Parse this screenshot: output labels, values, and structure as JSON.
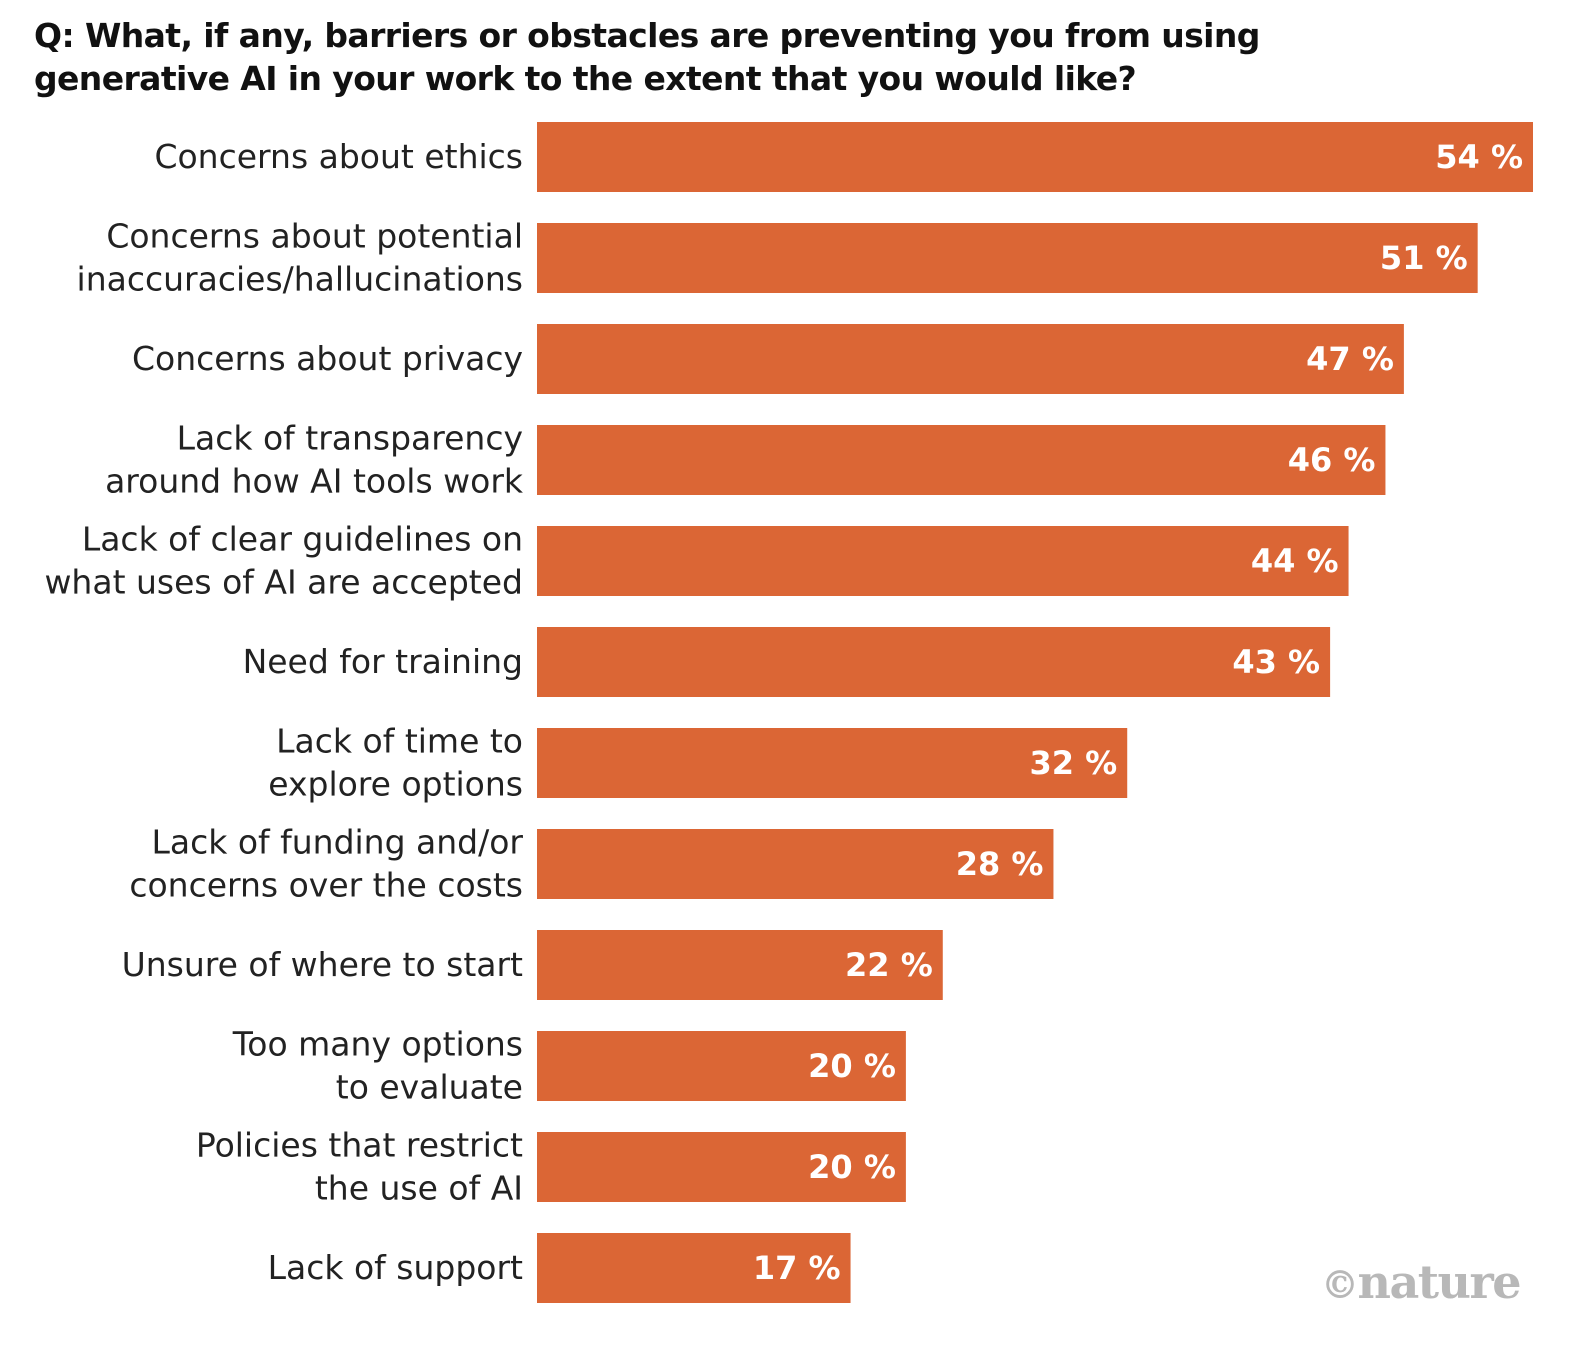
{
  "chart_data": {
    "type": "bar",
    "orientation": "horizontal",
    "title": "Q: What, if any, barriers or obstacles are preventing you from using generative AI in your work to the extent that you would like?",
    "categories": [
      [
        "Concerns about ethics"
      ],
      [
        "Concerns about potential",
        "inaccuracies/hallucinations"
      ],
      [
        "Concerns about privacy"
      ],
      [
        "Lack of transparency",
        "around how AI tools work"
      ],
      [
        "Lack of clear guidelines on",
        "what uses of AI are accepted"
      ],
      [
        "Need for training"
      ],
      [
        "Lack of time to",
        "explore options"
      ],
      [
        "Lack of funding and/or",
        "concerns over the costs"
      ],
      [
        "Unsure of where to start"
      ],
      [
        "Too many options",
        "to evaluate"
      ],
      [
        "Policies that restrict",
        "the use of AI"
      ],
      [
        "Lack of support"
      ]
    ],
    "values": [
      54,
      51,
      47,
      46,
      44,
      43,
      32,
      28,
      22,
      20,
      20,
      17
    ],
    "value_labels": [
      "54 %",
      "51 %",
      "47 %",
      "46 %",
      "44 %",
      "43 %",
      "32 %",
      "28 %",
      "22 %",
      "20 %",
      "20 %",
      "17 %"
    ],
    "xlim": [
      0,
      54
    ],
    "grid": false,
    "legend": "none",
    "bar_color": "#db6635"
  },
  "brand": {
    "copyright_symbol": "©",
    "name": "nature"
  }
}
